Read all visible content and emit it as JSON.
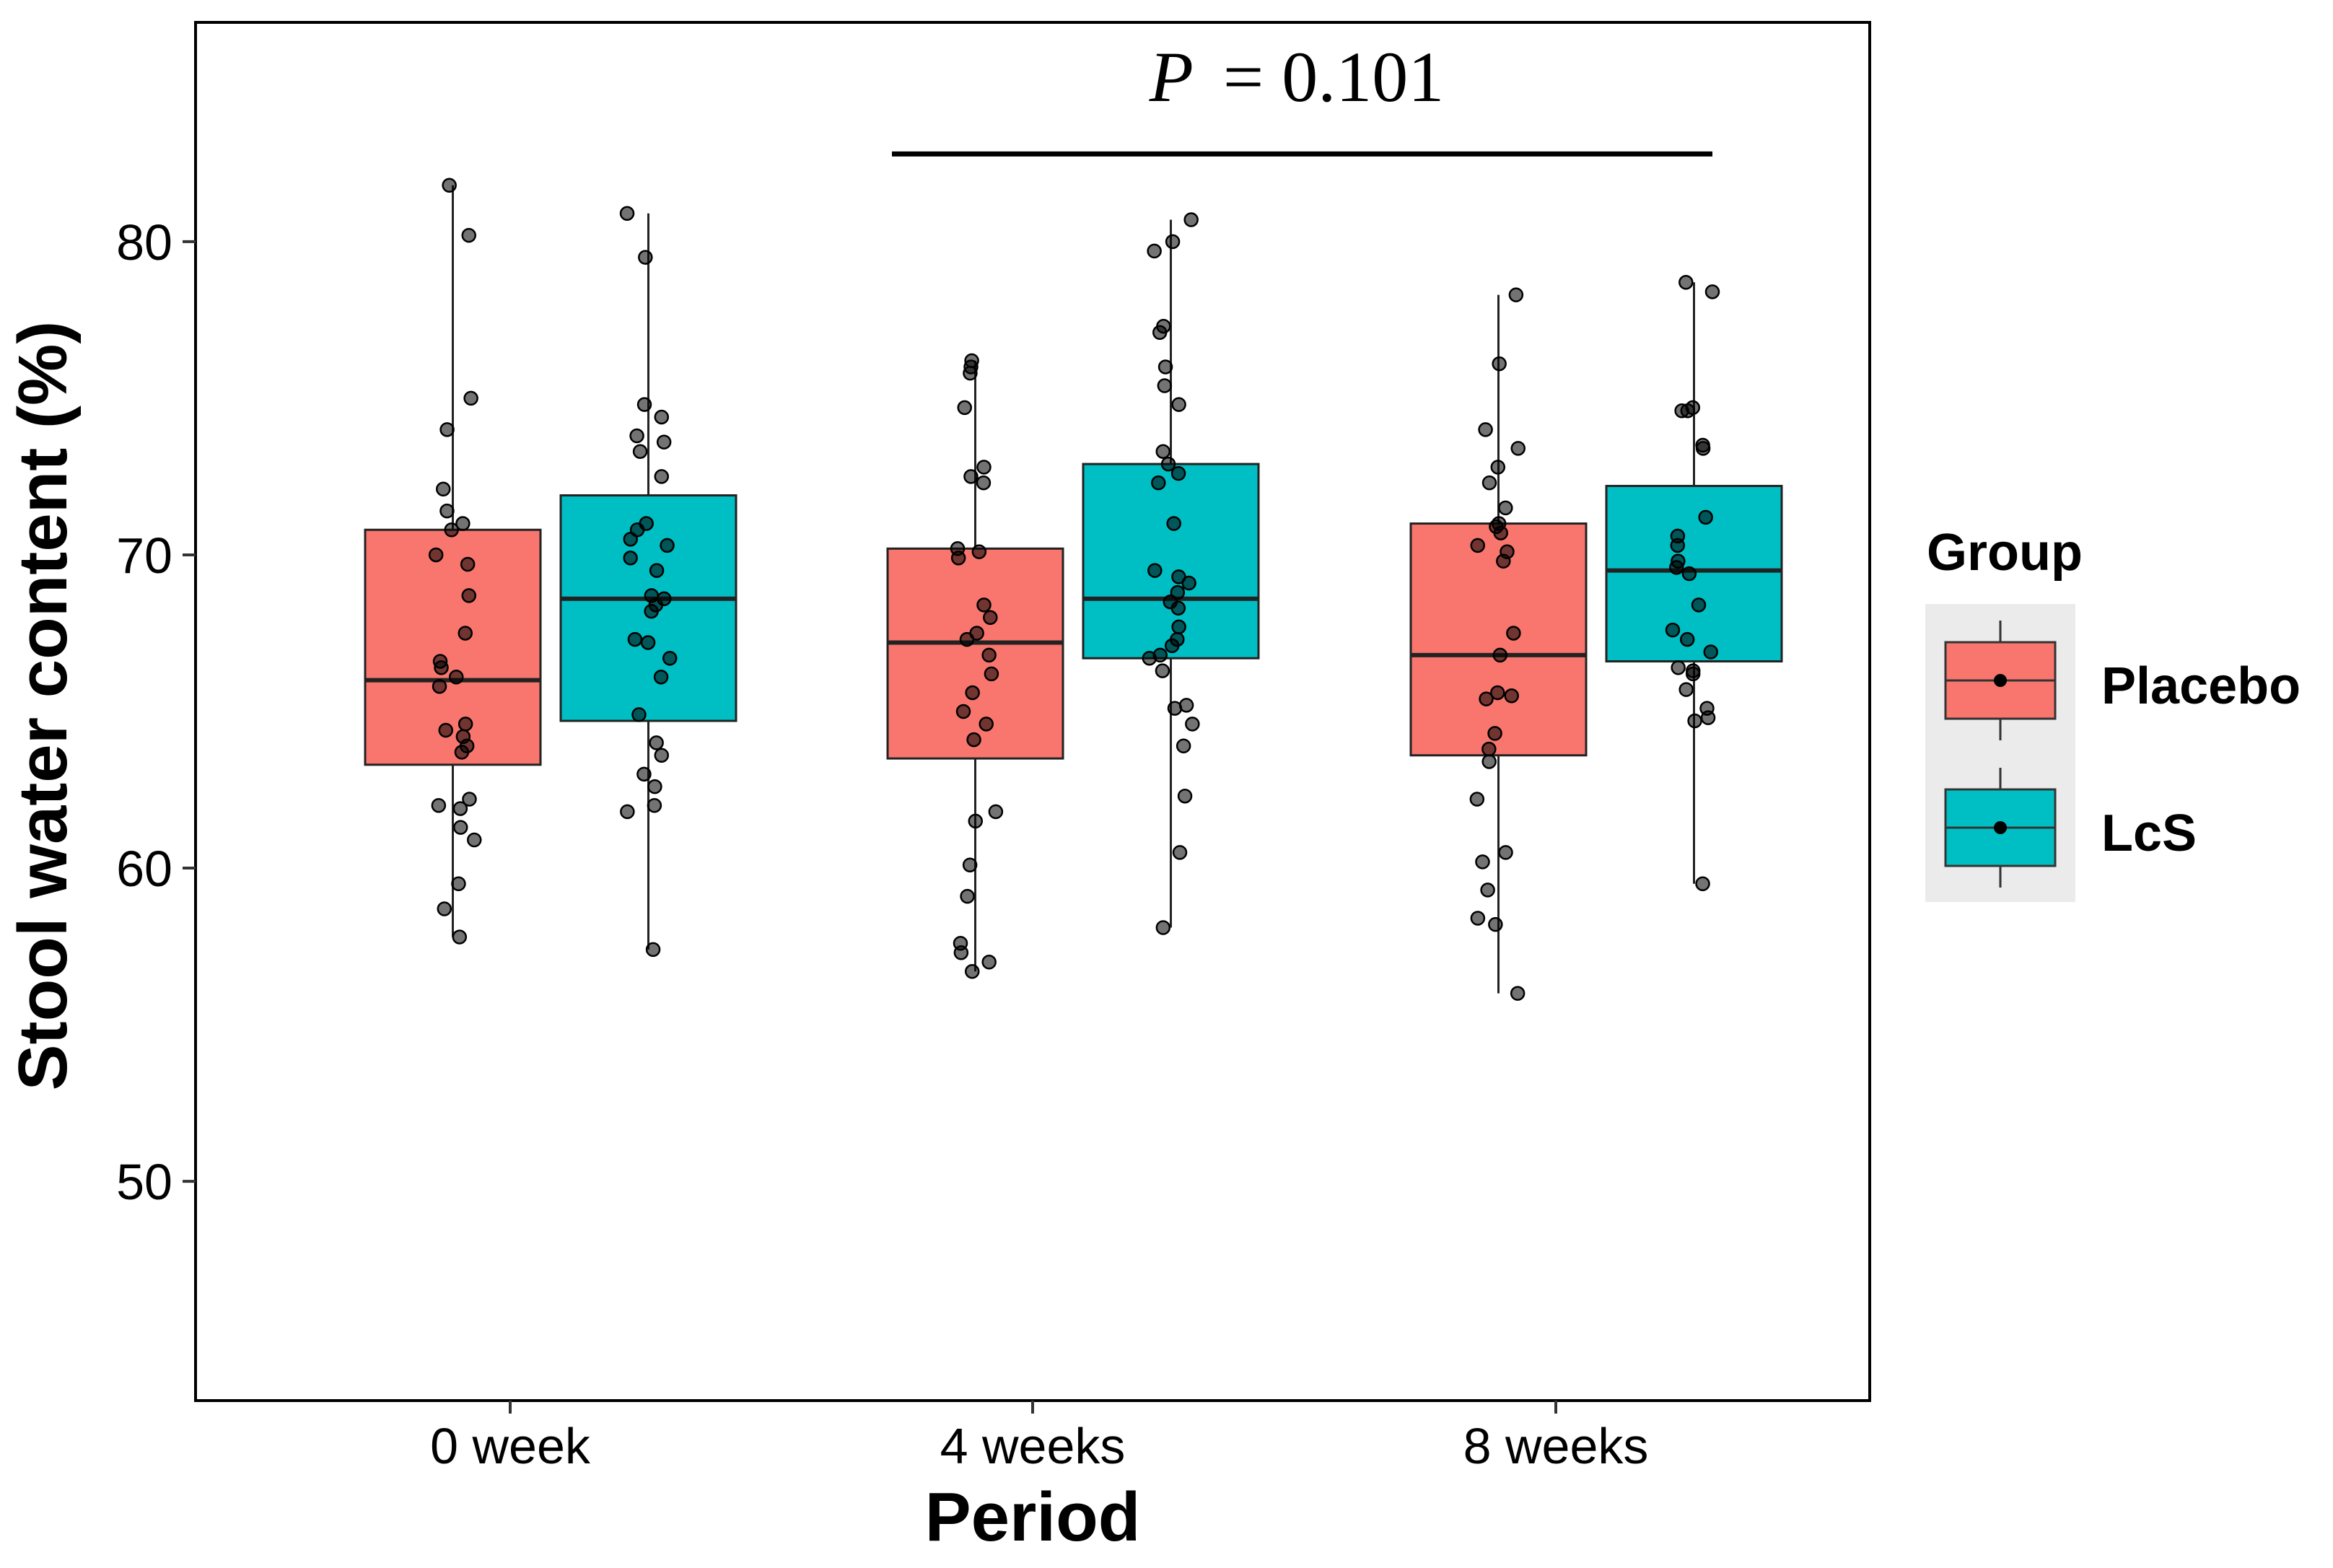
{
  "chart_data": {
    "type": "box",
    "ylabel": "Stool water content (%)",
    "xlabel": "Period",
    "categories": [
      "0 week",
      "4 weeks",
      "8 weeks"
    ],
    "ylim": [
      43,
      87
    ],
    "yticks": [
      50,
      60,
      70,
      80
    ],
    "grid": false,
    "colors": {
      "Placebo": "#F8766D",
      "LcS": "#00BFC4"
    },
    "legend": {
      "title": "Group",
      "position": "right",
      "entries": [
        "Placebo",
        "LcS"
      ]
    },
    "annotation": {
      "p_label": "P",
      "p_value": "= 0.101",
      "span": [
        "4 weeks",
        "8 weeks"
      ],
      "y": 82.8
    },
    "series": [
      {
        "name": "Placebo",
        "boxes": [
          {
            "q1": 63.3,
            "median": 66.0,
            "q3": 70.8,
            "whisker_low": 57.8,
            "whisker_high": 81.8
          },
          {
            "q1": 63.5,
            "median": 67.2,
            "q3": 70.2,
            "whisker_low": 56.7,
            "whisker_high": 76.2
          },
          {
            "q1": 63.6,
            "median": 66.8,
            "q3": 71.0,
            "whisker_low": 56.0,
            "whisker_high": 78.3
          }
        ],
        "points": [
          [
            57.8,
            58.7,
            59.5,
            60.9,
            61.3,
            61.9,
            62.0,
            62.2,
            63.7,
            63.9,
            64.2,
            64.4,
            64.6,
            65.8,
            66.1,
            66.4,
            66.6,
            67.5,
            68.7,
            69.7,
            70.0,
            70.8,
            71.0,
            71.4,
            72.1,
            74.0,
            75.0,
            80.2,
            81.8
          ],
          [
            56.7,
            57.0,
            57.3,
            57.6,
            59.1,
            60.1,
            61.5,
            61.8,
            64.1,
            64.6,
            65.0,
            65.6,
            66.2,
            66.8,
            67.3,
            67.5,
            68.0,
            68.4,
            69.9,
            70.1,
            70.2,
            72.3,
            72.5,
            72.8,
            74.7,
            75.8,
            76.0,
            76.2
          ],
          [
            56.0,
            58.2,
            58.4,
            59.3,
            60.2,
            60.5,
            62.2,
            63.4,
            63.8,
            64.3,
            65.4,
            65.5,
            65.6,
            66.8,
            67.5,
            69.8,
            70.1,
            70.3,
            70.7,
            70.9,
            71.0,
            71.5,
            72.3,
            72.8,
            73.4,
            74.0,
            76.1,
            78.3
          ]
        ]
      },
      {
        "name": "LcS",
        "boxes": [
          {
            "q1": 64.7,
            "median": 68.6,
            "q3": 71.9,
            "whisker_low": 57.4,
            "whisker_high": 80.9
          },
          {
            "q1": 66.7,
            "median": 68.6,
            "q3": 72.9,
            "whisker_low": 58.1,
            "whisker_high": 80.7
          },
          {
            "q1": 66.6,
            "median": 69.5,
            "q3": 72.2,
            "whisker_low": 59.5,
            "whisker_high": 78.7
          }
        ],
        "points": [
          [
            57.4,
            61.8,
            62.0,
            62.6,
            63.0,
            63.6,
            64.0,
            64.9,
            66.1,
            66.7,
            67.2,
            67.3,
            68.2,
            68.4,
            68.6,
            68.7,
            69.5,
            69.9,
            70.3,
            70.5,
            70.8,
            71.0,
            72.5,
            73.3,
            73.6,
            73.8,
            74.4,
            74.8,
            79.5,
            80.9
          ],
          [
            58.1,
            60.5,
            62.3,
            63.9,
            64.6,
            65.1,
            65.2,
            66.3,
            66.7,
            66.8,
            67.1,
            67.3,
            67.7,
            68.3,
            68.5,
            68.8,
            69.1,
            69.3,
            69.5,
            71.0,
            72.3,
            72.6,
            72.9,
            73.3,
            74.8,
            75.4,
            76.0,
            77.1,
            77.3,
            79.7,
            80.0,
            80.7
          ],
          [
            59.5,
            64.7,
            64.8,
            65.1,
            65.7,
            66.2,
            66.3,
            66.4,
            66.9,
            67.3,
            67.6,
            68.4,
            69.4,
            69.6,
            69.8,
            70.3,
            70.6,
            71.2,
            73.4,
            73.5,
            74.6,
            74.6,
            74.7,
            78.4,
            78.7
          ]
        ]
      }
    ]
  }
}
